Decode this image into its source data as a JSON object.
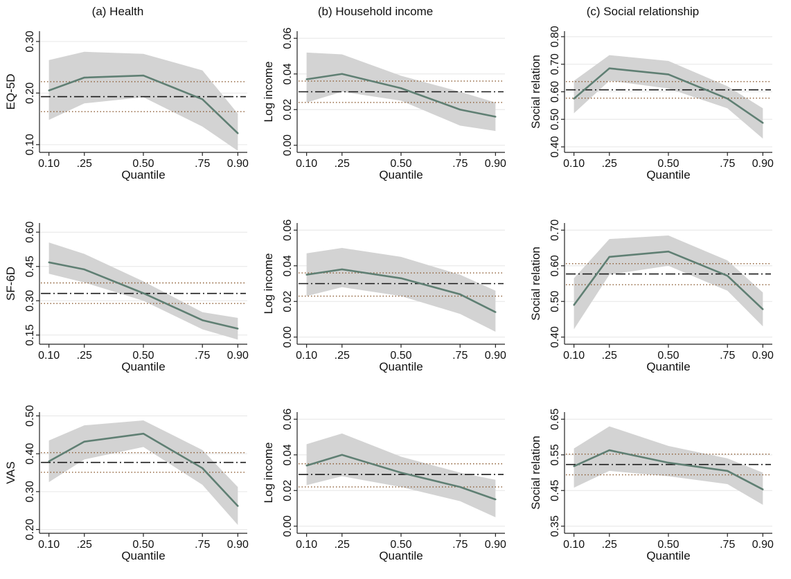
{
  "col_titles": [
    "(a) Health",
    "(b) Household income",
    "(c) Social relationship"
  ],
  "x_tick_labels": [
    "0.10",
    ".25",
    "0.50",
    ".75",
    "0.90"
  ],
  "colors": {
    "estimate_line": "#5f7f73",
    "ci_band": "#d3d3d3",
    "ols_line": "#1a1a1a",
    "ols_ci_line": "#8a5a30",
    "grid": "#e6e6e6",
    "axis": "#222222"
  },
  "chart_data": [
    {
      "type": "line",
      "panel": "row1-col1",
      "xlabel": "Quantile",
      "ylabel": "EQ-5D",
      "x": [
        0.1,
        0.25,
        0.5,
        0.75,
        0.9
      ],
      "yticks": [
        0.1,
        0.2,
        0.3
      ],
      "ytick_labels": [
        "0.10",
        "0.20",
        "0.30"
      ],
      "ylim": [
        0.085,
        0.32
      ],
      "estimate": [
        0.205,
        0.23,
        0.234,
        0.188,
        0.122
      ],
      "ci_lower": [
        0.148,
        0.18,
        0.192,
        0.135,
        0.088
      ],
      "ci_upper": [
        0.264,
        0.28,
        0.276,
        0.244,
        0.16
      ],
      "ols": 0.193,
      "ols_ci": [
        0.164,
        0.222
      ]
    },
    {
      "type": "line",
      "panel": "row1-col2",
      "xlabel": "Quantile",
      "ylabel": "Log income",
      "x": [
        0.1,
        0.25,
        0.5,
        0.75,
        0.9
      ],
      "yticks": [
        0.0,
        0.02,
        0.04,
        0.06
      ],
      "ytick_labels": [
        "0.00",
        "0.02",
        "0.04",
        "0.06"
      ],
      "ylim": [
        -0.004,
        0.064
      ],
      "estimate": [
        0.037,
        0.04,
        0.032,
        0.02,
        0.016
      ],
      "ci_lower": [
        0.024,
        0.03,
        0.025,
        0.011,
        0.008
      ],
      "ci_upper": [
        0.052,
        0.051,
        0.039,
        0.03,
        0.024
      ],
      "ols": 0.03,
      "ols_ci": [
        0.024,
        0.036
      ]
    },
    {
      "type": "line",
      "panel": "row1-col3",
      "xlabel": "Quantile",
      "ylabel": "Social relation",
      "x": [
        0.1,
        0.25,
        0.5,
        0.75,
        0.9
      ],
      "yticks": [
        0.4,
        0.5,
        0.6,
        0.7,
        0.8
      ],
      "ytick_labels": [
        "0.40",
        "0.50",
        "0.60",
        "0.70",
        "0.80"
      ],
      "ylim": [
        0.38,
        0.82
      ],
      "estimate": [
        0.575,
        0.685,
        0.663,
        0.575,
        0.487
      ],
      "ci_lower": [
        0.522,
        0.64,
        0.612,
        0.54,
        0.43
      ],
      "ci_upper": [
        0.64,
        0.733,
        0.712,
        0.62,
        0.54
      ],
      "ols": 0.607,
      "ols_ci": [
        0.577,
        0.637
      ]
    },
    {
      "type": "line",
      "panel": "row2-col1",
      "xlabel": "Quantile",
      "ylabel": "SF-6D",
      "x": [
        0.1,
        0.25,
        0.5,
        0.75,
        0.9
      ],
      "yticks": [
        0.15,
        0.3,
        0.45,
        0.6
      ],
      "ytick_labels": [
        "0.15",
        "0.30",
        "0.45",
        "0.60"
      ],
      "ylim": [
        0.11,
        0.64
      ],
      "estimate": [
        0.468,
        0.437,
        0.333,
        0.215,
        0.178
      ],
      "ci_lower": [
        0.418,
        0.38,
        0.3,
        0.175,
        0.13
      ],
      "ci_upper": [
        0.555,
        0.505,
        0.385,
        0.25,
        0.225
      ],
      "ols": 0.332,
      "ols_ci": [
        0.288,
        0.378
      ]
    },
    {
      "type": "line",
      "panel": "row2-col2",
      "xlabel": "Quantile",
      "ylabel": "Log income",
      "x": [
        0.1,
        0.25,
        0.5,
        0.75,
        0.9
      ],
      "yticks": [
        0.0,
        0.02,
        0.04,
        0.06
      ],
      "ytick_labels": [
        "0.00",
        "0.02",
        "0.04",
        "0.06"
      ],
      "ylim": [
        -0.004,
        0.064
      ],
      "estimate": [
        0.035,
        0.038,
        0.033,
        0.024,
        0.014
      ],
      "ci_lower": [
        0.023,
        0.028,
        0.023,
        0.013,
        0.003
      ],
      "ci_upper": [
        0.047,
        0.05,
        0.045,
        0.035,
        0.026
      ],
      "ols": 0.03,
      "ols_ci": [
        0.023,
        0.036
      ]
    },
    {
      "type": "line",
      "panel": "row2-col3",
      "xlabel": "Quantile",
      "ylabel": "Social relation",
      "x": [
        0.1,
        0.25,
        0.5,
        0.75,
        0.9
      ],
      "yticks": [
        0.4,
        0.5,
        0.6,
        0.7
      ],
      "ytick_labels": [
        "0.40",
        "0.50",
        "0.60",
        "0.70"
      ],
      "ylim": [
        0.38,
        0.72
      ],
      "estimate": [
        0.49,
        0.625,
        0.64,
        0.572,
        0.478
      ],
      "ci_lower": [
        0.422,
        0.575,
        0.6,
        0.53,
        0.43
      ],
      "ci_upper": [
        0.565,
        0.675,
        0.685,
        0.615,
        0.525
      ],
      "ols": 0.577,
      "ols_ci": [
        0.547,
        0.606
      ]
    },
    {
      "type": "line",
      "panel": "row3-col1",
      "xlabel": "Quantile",
      "ylabel": "VAS",
      "x": [
        0.1,
        0.25,
        0.5,
        0.75,
        0.9
      ],
      "yticks": [
        0.2,
        0.3,
        0.4,
        0.5
      ],
      "ytick_labels": [
        "0.20",
        "0.30",
        "0.40",
        "0.50"
      ],
      "ylim": [
        0.19,
        0.51
      ],
      "estimate": [
        0.38,
        0.432,
        0.453,
        0.362,
        0.262
      ],
      "ci_lower": [
        0.325,
        0.385,
        0.418,
        0.318,
        0.212
      ],
      "ci_upper": [
        0.435,
        0.475,
        0.488,
        0.41,
        0.312
      ],
      "ols": 0.377,
      "ols_ci": [
        0.351,
        0.403
      ]
    },
    {
      "type": "line",
      "panel": "row3-col2",
      "xlabel": "Quantile",
      "ylabel": "Log income",
      "x": [
        0.1,
        0.25,
        0.5,
        0.75,
        0.9
      ],
      "yticks": [
        0.0,
        0.02,
        0.04,
        0.06
      ],
      "ytick_labels": [
        "0.00",
        "0.02",
        "0.04",
        "0.06"
      ],
      "ylim": [
        -0.004,
        0.064
      ],
      "estimate": [
        0.034,
        0.04,
        0.03,
        0.022,
        0.015
      ],
      "ci_lower": [
        0.023,
        0.028,
        0.022,
        0.014,
        0.005
      ],
      "ci_upper": [
        0.046,
        0.052,
        0.039,
        0.03,
        0.026
      ],
      "ols": 0.029,
      "ols_ci": [
        0.022,
        0.035
      ]
    },
    {
      "type": "line",
      "panel": "row3-col3",
      "xlabel": "Quantile",
      "ylabel": "Social relation",
      "x": [
        0.1,
        0.25,
        0.5,
        0.75,
        0.9
      ],
      "yticks": [
        0.35,
        0.45,
        0.55,
        0.65
      ],
      "ytick_labels": [
        "0.35",
        "0.45",
        "0.55",
        "0.65"
      ],
      "ylim": [
        0.33,
        0.67
      ],
      "estimate": [
        0.518,
        0.563,
        0.528,
        0.505,
        0.453
      ],
      "ci_lower": [
        0.458,
        0.505,
        0.49,
        0.468,
        0.41
      ],
      "ci_upper": [
        0.568,
        0.63,
        0.575,
        0.54,
        0.5
      ],
      "ols": 0.523,
      "ols_ci": [
        0.494,
        0.552
      ]
    }
  ]
}
